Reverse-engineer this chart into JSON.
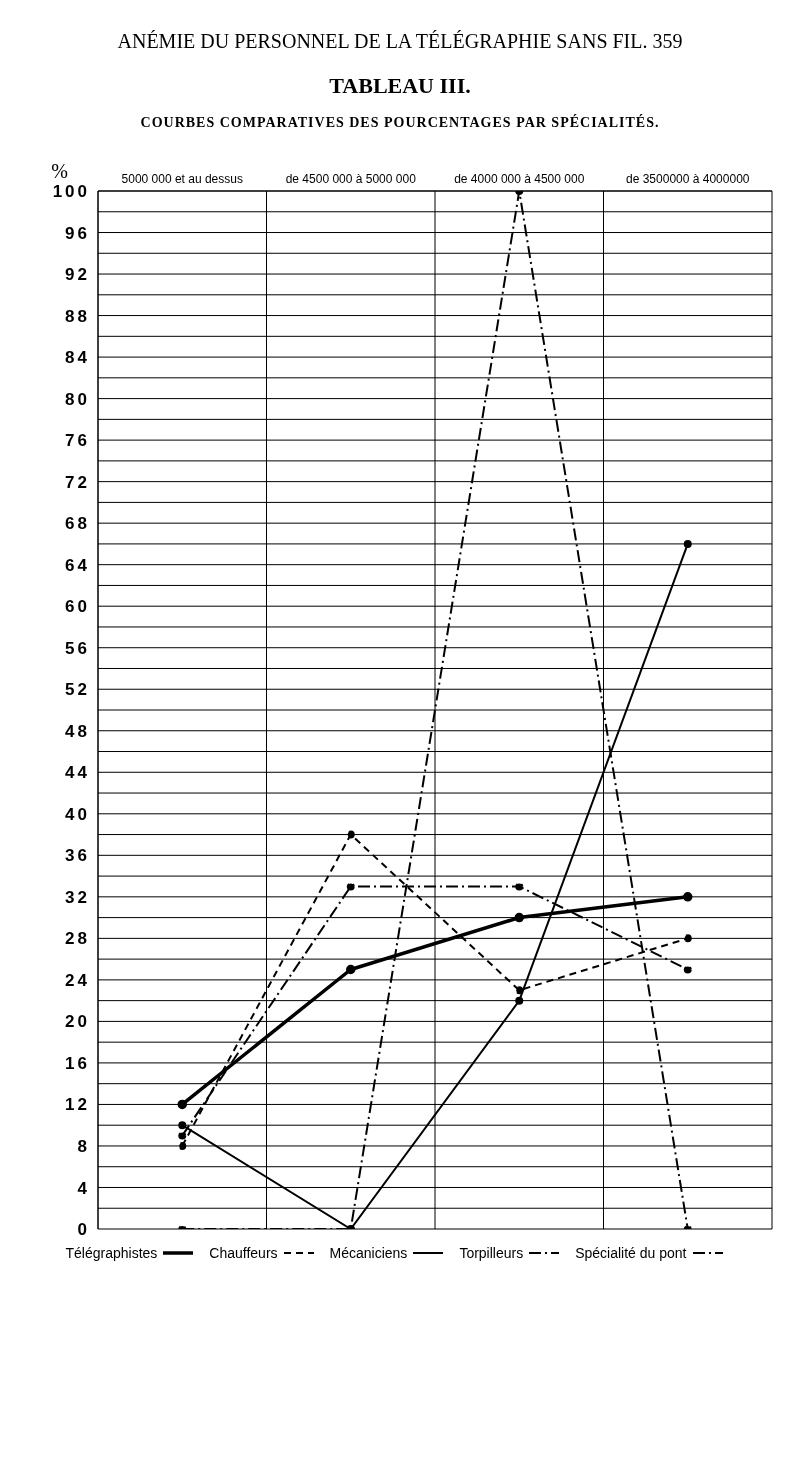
{
  "chart_data": {
    "type": "line",
    "title": "TABLEAU III.",
    "subtitle": "COURBES COMPARATIVES DES POURCENTAGES PAR SPÉCIALITÉS.",
    "annotations": [
      "ANÉMIE DU PERSONNEL DE LA TÉLÉGRAPHIE SANS FIL. 359"
    ],
    "ylabel": "%",
    "categories": [
      "5000 000 et au dessus",
      "de 4500 000 à 5000 000",
      "de 4000 000 à 4500 000",
      "de 3500000 à 4000000"
    ],
    "series": [
      {
        "name": "Télégraphistes",
        "color": "#000000",
        "line_style": "solid",
        "values": [
          12,
          25,
          30,
          32
        ]
      },
      {
        "name": "Chauffeurs",
        "color": "#000000",
        "line_style": "dashed",
        "values": [
          8,
          38,
          23,
          28
        ]
      },
      {
        "name": "Mécaniciens",
        "color": "#000000",
        "line_style": "solid",
        "values": [
          10,
          0,
          22,
          66
        ]
      },
      {
        "name": "Torpilleurs",
        "color": "#000000",
        "line_style": "dashdot",
        "values": [
          9,
          33,
          33,
          25
        ]
      },
      {
        "name": "Spécialité du pont",
        "color": "#000000",
        "line_style": "dashdot",
        "values": [
          0,
          0,
          100,
          0
        ]
      }
    ],
    "ylim": [
      0,
      100
    ],
    "yticks": [
      0,
      {
        "value": 2,
        "label": null
      },
      4,
      {
        "value": 6,
        "label": null
      },
      8,
      {
        "value": 10,
        "label": null
      },
      12,
      {
        "value": 14,
        "label": null
      },
      16,
      {
        "value": 18,
        "label": null
      },
      20,
      {
        "value": 22,
        "label": null
      },
      24,
      {
        "value": 26,
        "label": null
      },
      28,
      {
        "value": 30,
        "label": null
      },
      32,
      {
        "value": 34,
        "label": null
      },
      36,
      {
        "value": 38,
        "label": null
      },
      40,
      {
        "value": 42,
        "label": null
      },
      44,
      {
        "value": 46,
        "label": null
      },
      48,
      {
        "value": 50,
        "label": null
      },
      52,
      {
        "value": 54,
        "label": null
      },
      56,
      {
        "value": 58,
        "label": null
      },
      60,
      {
        "value": 62,
        "label": null
      },
      64,
      {
        "value": 66,
        "label": null
      },
      68,
      {
        "value": 70,
        "label": null
      },
      72,
      {
        "value": 74,
        "label": null
      },
      76,
      {
        "value": 78,
        "label": null
      },
      80,
      {
        "value": 82,
        "label": null
      },
      84,
      {
        "value": 86,
        "label": null
      },
      88,
      {
        "value": 90,
        "label": null
      },
      92,
      {
        "value": 94,
        "label": null
      },
      96,
      {
        "value": 98,
        "label": null
      },
      100
    ],
    "grid": true,
    "legend": "bottom",
    "marker": "circle"
  }
}
